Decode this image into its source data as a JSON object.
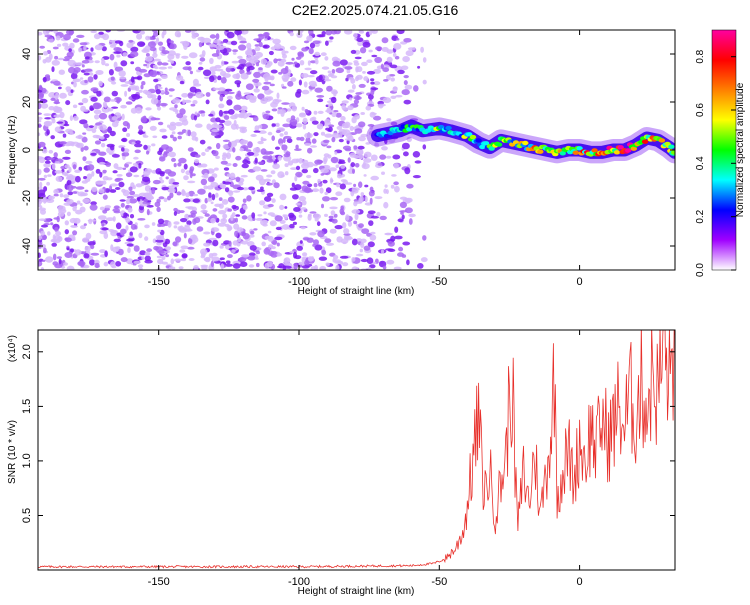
{
  "title": "C2E2.2025.074.21.05.G16",
  "chart_data": [
    {
      "type": "heatmap",
      "xlabel": "Height of straight line (km)",
      "ylabel": "Frequency (Hz)",
      "xlim": [
        -193,
        34
      ],
      "ylim": [
        -50,
        50
      ],
      "xticks": [
        -150,
        -100,
        -50,
        0
      ],
      "yticks": [
        -40,
        -20,
        0,
        20,
        40
      ],
      "colorbar": {
        "label": "Normalized spectral amplitude",
        "range": [
          0.0,
          0.9
        ],
        "ticks": [
          "0.0",
          "0.2",
          "0.4",
          "0.6",
          "0.8"
        ],
        "colors": [
          "#ffffff",
          "#a000ff",
          "#0000ff",
          "#00ffff",
          "#00ff00",
          "#ffff00",
          "#ff8000",
          "#ff0000",
          "#ff00a0"
        ]
      },
      "ridge": {
        "x": [
          -72,
          -68,
          -64,
          -60,
          -56,
          -50,
          -46,
          -40,
          -36,
          -32,
          -28,
          -24,
          -20,
          -16,
          -12,
          -8,
          -4,
          0,
          4,
          8,
          12,
          16,
          20,
          24,
          28,
          32,
          34
        ],
        "freq": [
          6,
          7,
          8,
          10,
          8,
          9,
          8,
          6,
          3,
          1,
          4,
          3,
          2,
          1,
          0,
          -1,
          0,
          0,
          -1,
          -1,
          0,
          0,
          2,
          5,
          4,
          1,
          -1
        ],
        "amplitude": [
          0.3,
          0.35,
          0.4,
          0.45,
          0.4,
          0.5,
          0.45,
          0.5,
          0.45,
          0.5,
          0.5,
          0.55,
          0.6,
          0.65,
          0.6,
          0.7,
          0.7,
          0.75,
          0.75,
          0.8,
          0.8,
          0.85,
          0.8,
          0.7,
          0.7,
          0.55,
          0.5
        ]
      }
    },
    {
      "type": "line",
      "xlabel": "Height of straight line (km)",
      "ylabel": "SNR (10 * v/v)",
      "scale_label": "(x10⁴)",
      "xlim": [
        -193,
        34
      ],
      "ylim": [
        0,
        2.2
      ],
      "xticks": [
        -150,
        -100,
        -50,
        0
      ],
      "yticks": [
        0.5,
        1.0,
        1.5,
        2.0
      ],
      "color": "#e8302b",
      "series": [
        {
          "x": [
            -193,
            -150,
            -100,
            -60,
            -52,
            -48,
            -44,
            -41,
            -39,
            -37,
            -36,
            -35,
            -34,
            -32,
            -30,
            -28,
            -26,
            -25,
            -24,
            -23,
            -22,
            -20,
            -18,
            -16,
            -14,
            -12,
            -10,
            -9,
            -8,
            -6,
            -4,
            -2,
            0,
            2,
            4,
            6,
            8,
            10,
            12,
            14,
            16,
            18,
            20,
            22,
            24,
            26,
            28,
            30,
            32,
            34
          ],
          "y": [
            0.03,
            0.03,
            0.03,
            0.04,
            0.06,
            0.1,
            0.2,
            0.4,
            0.8,
            1.2,
            1.4,
            1.0,
            0.7,
            0.9,
            0.5,
            0.8,
            1.1,
            1.6,
            1.72,
            0.9,
            0.4,
            0.9,
            0.6,
            1.1,
            0.5,
            0.9,
            1.3,
            1.82,
            0.7,
            0.9,
            1.1,
            0.8,
            1.2,
            1.0,
            1.3,
            1.1,
            1.4,
            1.2,
            1.3,
            1.5,
            1.3,
            1.6,
            1.4,
            1.7,
            1.5,
            1.8,
            1.6,
            2.1,
            1.7,
            2.15
          ]
        }
      ]
    }
  ]
}
